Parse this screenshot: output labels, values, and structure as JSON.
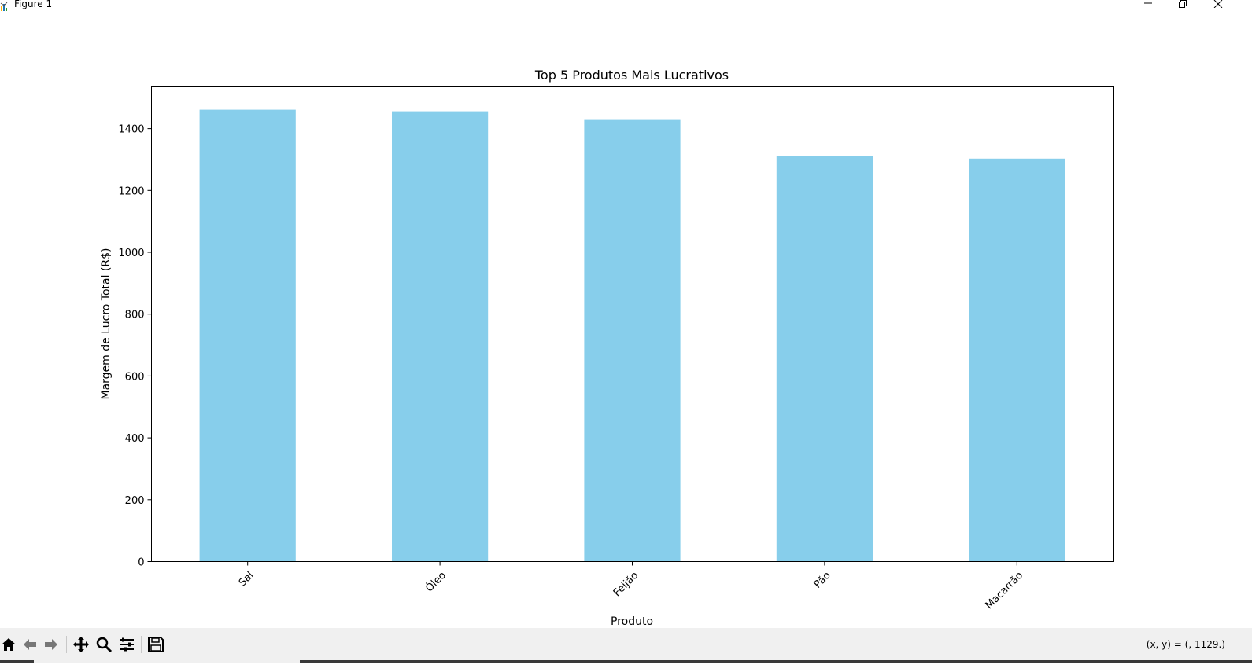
{
  "window": {
    "title": "Figure 1",
    "icons": {
      "app": "matplotlib-icon",
      "minimize": "minimize-icon",
      "maximize": "restore-icon",
      "close": "close-icon"
    }
  },
  "chart_data": {
    "type": "bar",
    "title": "Top 5 Produtos Mais Lucrativos",
    "xlabel": "Produto",
    "ylabel": "Margem de Lucro Total (R$)",
    "categories": [
      "Sal",
      "Óleo",
      "Feijão",
      "Pão",
      "Macarrão"
    ],
    "values": [
      1461,
      1456,
      1428,
      1311,
      1303
    ],
    "ylim": [
      0,
      1535
    ],
    "yticks": [
      0,
      200,
      400,
      600,
      800,
      1000,
      1200,
      1400
    ],
    "bar_color": "#87ceeb",
    "grid": false,
    "legend": "none"
  },
  "toolbar": {
    "icons": [
      "home-icon",
      "back-arrow-icon",
      "forward-arrow-icon",
      "pan-icon",
      "zoom-icon",
      "subplots-icon",
      "save-icon"
    ],
    "coordinate_readout": "(x, y) = (, 1129.)"
  }
}
